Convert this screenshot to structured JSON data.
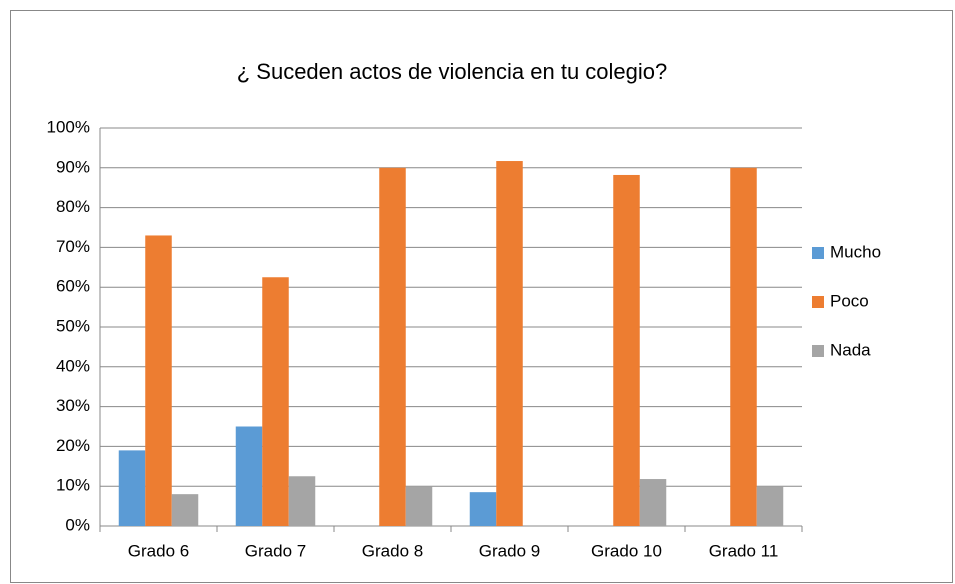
{
  "chart_data": {
    "type": "bar",
    "title": "¿ Suceden actos de violencia en tu colegio?",
    "categories": [
      "Grado 6",
      "Grado 7",
      "Grado 8",
      "Grado 9",
      "Grado 10",
      "Grado 11"
    ],
    "series": [
      {
        "name": "Mucho",
        "color": "#5b9bd5",
        "values": [
          19,
          25,
          0,
          8.5,
          0,
          0
        ]
      },
      {
        "name": "Poco",
        "color": "#ed7d31",
        "values": [
          73,
          62.5,
          90,
          91.7,
          88.2,
          90
        ]
      },
      {
        "name": "Nada",
        "color": "#a5a5a5",
        "values": [
          8,
          12.5,
          10,
          0,
          11.8,
          10
        ]
      }
    ],
    "ylim": [
      0,
      100
    ],
    "yticks": [
      {
        "value": 0,
        "label": "0%"
      },
      {
        "value": 10,
        "label": "10%"
      },
      {
        "value": 20,
        "label": "20%"
      },
      {
        "value": 30,
        "label": "30%"
      },
      {
        "value": 40,
        "label": "40%"
      },
      {
        "value": 50,
        "label": "50%"
      },
      {
        "value": 60,
        "label": "60%"
      },
      {
        "value": 70,
        "label": "70%"
      },
      {
        "value": 80,
        "label": "80%"
      },
      {
        "value": 90,
        "label": "90%"
      },
      {
        "value": 100,
        "label": "100%"
      }
    ],
    "grid": true,
    "legend": "right"
  }
}
